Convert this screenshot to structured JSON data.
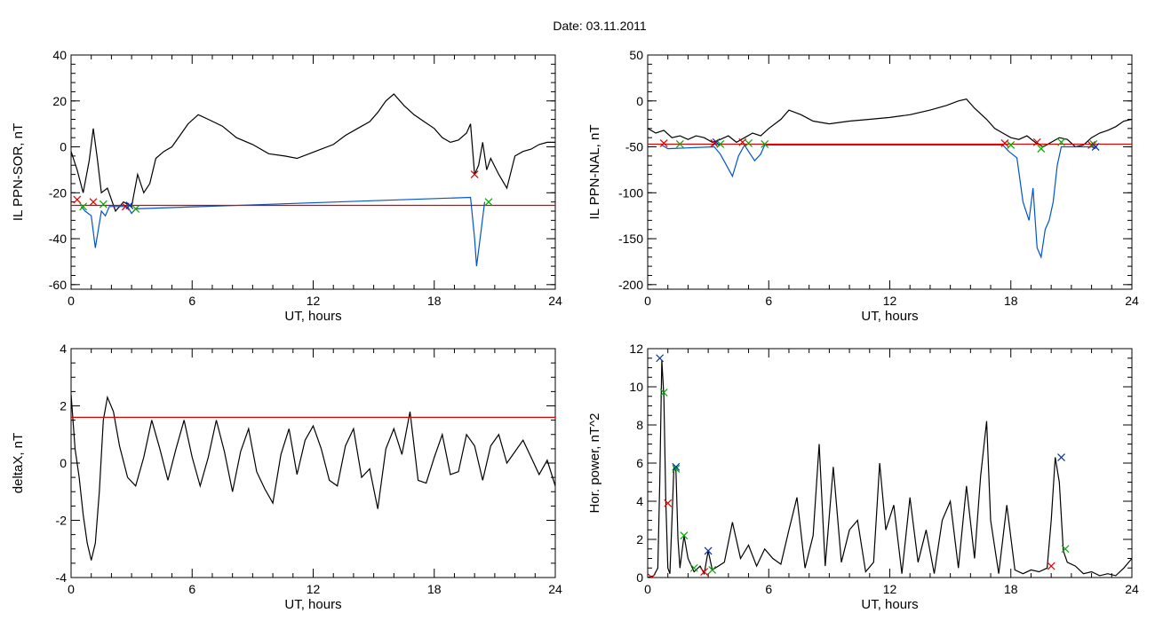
{
  "figure_title": "Date:  03.11.2011",
  "chart_data": [
    {
      "type": "line",
      "xlabel": "UT, hours",
      "ylabel": "IL PPN-SOR, nT",
      "xlim": [
        0,
        24
      ],
      "ylim": [
        -62,
        40
      ],
      "xticks": [
        0,
        6,
        12,
        18,
        24
      ],
      "yticks": [
        -60,
        -40,
        -20,
        0,
        20,
        40
      ],
      "threshold": -25.5,
      "series": [
        {
          "color": "#000000",
          "x": [
            0,
            0.3,
            0.6,
            0.9,
            1.1,
            1.3,
            1.5,
            1.8,
            2.2,
            2.6,
            3.0,
            3.3,
            3.6,
            3.9,
            4.2,
            4.6,
            5.0,
            5.4,
            5.8,
            6.3,
            6.8,
            7.5,
            8.2,
            9.0,
            9.8,
            10.6,
            11.2,
            11.8,
            12.4,
            13.0,
            13.6,
            14.2,
            14.8,
            15.2,
            15.6,
            16.0,
            16.5,
            17.0,
            17.5,
            18.0,
            18.4,
            18.8,
            19.2,
            19.6,
            19.8,
            20.0,
            20.2,
            20.4,
            20.6,
            20.8,
            21.2,
            21.6,
            22.0,
            22.4,
            22.8,
            23.2,
            23.6,
            24.0
          ],
          "y": [
            -2,
            -10,
            -20,
            -6,
            8,
            -5,
            -20,
            -18,
            -28,
            -24,
            -26,
            -12,
            -20,
            -16,
            -5,
            -2,
            0,
            5,
            10,
            14,
            12,
            9,
            4,
            1,
            -3,
            -4,
            -5,
            -3,
            -1,
            1,
            5,
            8,
            11,
            15,
            20,
            23,
            18,
            14,
            11,
            8,
            4,
            2,
            3,
            6,
            10,
            -12,
            -8,
            2,
            -10,
            -5,
            -12,
            -18,
            -4,
            -2,
            -1,
            1,
            2,
            2
          ]
        },
        {
          "color": "#0055cc",
          "x": [
            0.5,
            0.7,
            1.0,
            1.2,
            1.5,
            1.7,
            1.9,
            2.8,
            3.0,
            3.2,
            19.8,
            20.0,
            20.1,
            20.3,
            20.5
          ],
          "y": [
            -26,
            -28,
            -30,
            -44,
            -28,
            -30,
            -26,
            -26,
            -29,
            -27,
            -22,
            -40,
            -52,
            -38,
            -24
          ]
        }
      ],
      "markers": [
        {
          "color": "#e00000",
          "x": [
            0.3,
            1.1,
            2.7,
            20.0
          ],
          "y": [
            -23,
            -24,
            -26,
            -12
          ]
        },
        {
          "color": "#00aa00",
          "x": [
            0.6,
            1.6,
            3.2,
            20.7
          ],
          "y": [
            -26,
            -25,
            -27,
            -24
          ]
        },
        {
          "color": "#0033aa",
          "x": [
            2.9
          ],
          "y": [
            -25.5
          ]
        }
      ]
    },
    {
      "type": "line",
      "xlabel": "UT, hours",
      "ylabel": "IL PPN-NAL, nT",
      "xlim": [
        0,
        24
      ],
      "ylim": [
        -205,
        50
      ],
      "xticks": [
        0,
        6,
        12,
        18,
        24
      ],
      "yticks": [
        -200,
        -150,
        -100,
        -50,
        0,
        50
      ],
      "threshold": -47,
      "series": [
        {
          "color": "#000000",
          "x": [
            0,
            0.4,
            0.8,
            1.2,
            1.6,
            2.0,
            2.4,
            2.8,
            3.2,
            3.6,
            4.0,
            4.4,
            4.8,
            5.2,
            5.6,
            6.0,
            6.6,
            7.0,
            7.6,
            8.2,
            9.0,
            10.0,
            11.0,
            12.0,
            13.0,
            14.0,
            14.8,
            15.4,
            15.8,
            16.2,
            16.8,
            17.2,
            17.6,
            18.0,
            18.4,
            18.8,
            19.2,
            19.6,
            20.0,
            20.4,
            20.8,
            21.2,
            21.6,
            22.0,
            22.4,
            22.8,
            23.2,
            23.6,
            24.0
          ],
          "y": [
            -30,
            -35,
            -32,
            -40,
            -38,
            -42,
            -38,
            -40,
            -45,
            -42,
            -38,
            -45,
            -40,
            -35,
            -38,
            -30,
            -20,
            -10,
            -15,
            -22,
            -25,
            -22,
            -20,
            -18,
            -15,
            -10,
            -5,
            0,
            2,
            -8,
            -20,
            -30,
            -35,
            -40,
            -42,
            -38,
            -45,
            -50,
            -45,
            -40,
            -42,
            -50,
            -48,
            -40,
            -35,
            -32,
            -28,
            -22,
            -20
          ]
        },
        {
          "color": "#0055cc",
          "x": [
            0.7,
            1.0,
            3.3,
            3.6,
            3.9,
            4.2,
            4.5,
            4.8,
            5.0,
            5.3,
            5.6,
            5.8,
            17.6,
            17.9,
            18.3,
            18.6,
            18.9,
            19.1,
            19.3,
            19.5,
            19.7,
            19.9,
            20.1,
            20.3,
            20.5,
            22.0,
            22.2
          ],
          "y": [
            -48,
            -52,
            -50,
            -58,
            -70,
            -82,
            -60,
            -48,
            -55,
            -65,
            -58,
            -48,
            -48,
            -55,
            -62,
            -110,
            -130,
            -95,
            -160,
            -170,
            -140,
            -130,
            -110,
            -70,
            -50,
            -50,
            -52
          ]
        }
      ],
      "markers": [
        {
          "color": "#e00000",
          "x": [
            0.8,
            3.3,
            4.7,
            17.7,
            19.3,
            22.0
          ],
          "y": [
            -46,
            -46,
            -45,
            -46,
            -45,
            -48
          ]
        },
        {
          "color": "#00aa00",
          "x": [
            1.6,
            3.6,
            5.0,
            5.8,
            18.0,
            19.5,
            20.5,
            22.1
          ],
          "y": [
            -47,
            -47,
            -46,
            -47,
            -48,
            -52,
            -45,
            -47
          ]
        },
        {
          "color": "#0033aa",
          "x": [
            3.4,
            22.2
          ],
          "y": [
            -45,
            -50
          ]
        }
      ]
    },
    {
      "type": "line",
      "xlabel": "UT, hours",
      "ylabel": "deltaX, nT",
      "xlim": [
        0,
        24
      ],
      "ylim": [
        -4,
        4
      ],
      "xticks": [
        0,
        6,
        12,
        18,
        24
      ],
      "yticks": [
        -4,
        -2,
        0,
        2,
        4
      ],
      "threshold": 1.6,
      "series": [
        {
          "color": "#000000",
          "x": [
            0,
            0.2,
            0.4,
            0.6,
            0.8,
            1.0,
            1.2,
            1.4,
            1.6,
            1.8,
            2.1,
            2.4,
            2.8,
            3.2,
            3.6,
            4.0,
            4.4,
            4.8,
            5.2,
            5.6,
            6.0,
            6.4,
            6.8,
            7.2,
            7.6,
            8.0,
            8.4,
            8.8,
            9.2,
            9.6,
            10.0,
            10.4,
            10.8,
            11.2,
            11.6,
            12.0,
            12.4,
            12.8,
            13.2,
            13.6,
            14.0,
            14.4,
            14.8,
            15.2,
            15.6,
            16.0,
            16.4,
            16.8,
            17.2,
            17.6,
            18.0,
            18.4,
            18.8,
            19.2,
            19.6,
            20.0,
            20.4,
            20.8,
            21.2,
            21.6,
            22.0,
            22.4,
            22.8,
            23.2,
            23.6,
            24.0
          ],
          "y": [
            2.4,
            0.5,
            -0.5,
            -1.8,
            -2.8,
            -3.4,
            -2.8,
            -1.0,
            1.5,
            2.3,
            1.8,
            0.6,
            -0.5,
            -0.8,
            0.2,
            1.5,
            0.5,
            -0.6,
            0.5,
            1.5,
            0.2,
            -0.8,
            0.2,
            1.5,
            0.4,
            -1.0,
            0.4,
            1.2,
            -0.3,
            -0.9,
            -1.4,
            0.3,
            1.2,
            -0.4,
            0.8,
            1.3,
            0.5,
            -0.6,
            -0.8,
            0.6,
            1.2,
            -0.5,
            -0.2,
            -1.6,
            0.5,
            1.2,
            0.3,
            1.8,
            -0.6,
            -0.7,
            0.2,
            1.0,
            -0.4,
            -0.3,
            1.0,
            0.6,
            -0.6,
            0.6,
            1.0,
            0.0,
            0.4,
            0.8,
            0.2,
            -0.4,
            0.1,
            -0.8
          ]
        }
      ],
      "markers": []
    },
    {
      "type": "line",
      "xlabel": "UT, hours",
      "ylabel": "Hor. power, nT^2",
      "xlim": [
        0,
        24
      ],
      "ylim": [
        0,
        12
      ],
      "xticks": [
        0,
        6,
        12,
        18,
        24
      ],
      "yticks": [
        0,
        2,
        4,
        6,
        8,
        10,
        12
      ],
      "threshold": null,
      "series": [
        {
          "color": "#000000",
          "x": [
            0,
            0.3,
            0.5,
            0.6,
            0.7,
            0.8,
            0.9,
            1.0,
            1.1,
            1.2,
            1.3,
            1.4,
            1.5,
            1.6,
            1.8,
            2.0,
            2.3,
            2.6,
            2.8,
            3.0,
            3.2,
            3.5,
            3.8,
            4.2,
            4.6,
            5.0,
            5.4,
            5.8,
            6.2,
            6.6,
            7.0,
            7.4,
            7.8,
            8.2,
            8.5,
            8.8,
            9.2,
            9.6,
            10.0,
            10.4,
            10.8,
            11.2,
            11.5,
            11.8,
            12.2,
            12.6,
            13.0,
            13.4,
            13.8,
            14.2,
            14.6,
            15.0,
            15.4,
            15.8,
            16.2,
            16.5,
            16.8,
            17.0,
            17.4,
            17.8,
            18.2,
            18.6,
            19.0,
            19.4,
            19.8,
            20.0,
            20.2,
            20.4,
            20.6,
            20.8,
            21.2,
            21.6,
            22.0,
            22.4,
            22.8,
            23.2,
            23.6,
            24.0
          ],
          "y": [
            0,
            0.1,
            0.5,
            5,
            11.4,
            9.5,
            4,
            0.5,
            0.2,
            3,
            5.8,
            5.6,
            2,
            0.5,
            2.2,
            1.0,
            0.3,
            0.6,
            0.2,
            1.4,
            0.4,
            0.6,
            0.8,
            2.9,
            1.0,
            1.7,
            0.6,
            1.5,
            1.0,
            0.7,
            2.5,
            4.2,
            0.5,
            2.2,
            7.0,
            0.6,
            5.8,
            0.8,
            2.5,
            3.0,
            0.3,
            0.8,
            6.0,
            2.5,
            3.8,
            0.2,
            4.2,
            0.8,
            2.5,
            0.2,
            3.0,
            4.0,
            0.5,
            4.8,
            1.0,
            5.3,
            8.2,
            3.0,
            0.2,
            3.8,
            0.4,
            0.2,
            0.4,
            0.3,
            0.5,
            3.0,
            6.3,
            5.0,
            1.4,
            0.8,
            0.6,
            0.2,
            0.3,
            0.1,
            0.2,
            0.1,
            0.5,
            1.0
          ]
        }
      ],
      "markers": [
        {
          "color": "#e00000",
          "x": [
            0.2,
            1.0,
            2.8,
            20.0
          ],
          "y": [
            0.0,
            3.9,
            0.3,
            0.6
          ]
        },
        {
          "color": "#00aa00",
          "x": [
            0.8,
            1.4,
            1.8,
            2.3,
            3.2,
            20.7
          ],
          "y": [
            9.7,
            5.7,
            2.2,
            0.5,
            0.4,
            1.5
          ]
        },
        {
          "color": "#0033aa",
          "x": [
            0.6,
            1.4,
            3.0,
            20.5
          ],
          "y": [
            11.5,
            5.8,
            1.4,
            6.3
          ]
        }
      ]
    }
  ]
}
